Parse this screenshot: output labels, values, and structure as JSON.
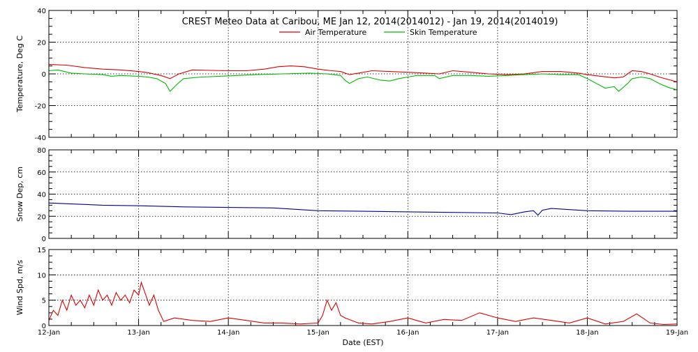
{
  "chart_data": {
    "type": "line",
    "title": "CREST Meteo Data at Caribou, ME   Jan 12, 2014(2014012) - Jan 19, 2014(2014019)",
    "xlabel": "Date (EST)",
    "x_tick_labels": [
      "12-Jan",
      "13-Jan",
      "14-Jan",
      "15-Jan",
      "16-Jan",
      "17-Jan",
      "18-Jan",
      "19-Jan"
    ],
    "xlim_days": [
      0,
      7
    ],
    "panels": [
      {
        "id": "temperature",
        "ylabel": "Temperature, Deg C",
        "ylim": [
          -40,
          40
        ],
        "y_tick_labels": [
          "-40",
          "-20",
          "0",
          "20",
          "40"
        ],
        "y_grid": [
          -20,
          0,
          20
        ],
        "legend_position": "top-center",
        "series": [
          {
            "name": "Air Temperature",
            "color": "#dd0000",
            "points": [
              [
                0,
                6
              ],
              [
                0.2,
                5.5
              ],
              [
                0.4,
                4
              ],
              [
                0.6,
                3
              ],
              [
                0.8,
                2.5
              ],
              [
                1.0,
                1.5
              ],
              [
                1.1,
                0.8
              ],
              [
                1.25,
                -1
              ],
              [
                1.35,
                -3
              ],
              [
                1.45,
                0
              ],
              [
                1.6,
                2.5
              ],
              [
                1.8,
                2.2
              ],
              [
                2.0,
                2
              ],
              [
                2.2,
                2
              ],
              [
                2.4,
                3
              ],
              [
                2.55,
                4.5
              ],
              [
                2.7,
                5
              ],
              [
                2.85,
                4.5
              ],
              [
                3.0,
                3
              ],
              [
                3.15,
                2
              ],
              [
                3.25,
                1.5
              ],
              [
                3.35,
                -0.5
              ],
              [
                3.45,
                0.5
              ],
              [
                3.6,
                2
              ],
              [
                3.8,
                1.5
              ],
              [
                4.0,
                1
              ],
              [
                4.2,
                0.5
              ],
              [
                4.35,
                0
              ],
              [
                4.5,
                2
              ],
              [
                4.7,
                1
              ],
              [
                4.9,
                0
              ],
              [
                5.1,
                -0.5
              ],
              [
                5.3,
                0
              ],
              [
                5.5,
                1.5
              ],
              [
                5.7,
                1.5
              ],
              [
                5.9,
                0.5
              ],
              [
                6.0,
                -0.5
              ],
              [
                6.15,
                -1.5
              ],
              [
                6.3,
                -2.5
              ],
              [
                6.4,
                -2
              ],
              [
                6.5,
                2
              ],
              [
                6.6,
                1.5
              ],
              [
                6.7,
                0
              ],
              [
                6.8,
                -2
              ],
              [
                6.9,
                -3.5
              ],
              [
                7.0,
                -5
              ]
            ]
          },
          {
            "name": "Skin Temperature",
            "color": "#00bb00",
            "points": [
              [
                0,
                2
              ],
              [
                0.1,
                2.5
              ],
              [
                0.25,
                0.5
              ],
              [
                0.4,
                0
              ],
              [
                0.6,
                -0.5
              ],
              [
                0.7,
                -1.5
              ],
              [
                0.8,
                -1
              ],
              [
                1.0,
                -1.5
              ],
              [
                1.1,
                -2
              ],
              [
                1.2,
                -3
              ],
              [
                1.3,
                -6
              ],
              [
                1.35,
                -11
              ],
              [
                1.42,
                -7
              ],
              [
                1.5,
                -3
              ],
              [
                1.7,
                -2
              ],
              [
                1.9,
                -1.5
              ],
              [
                2.1,
                -1
              ],
              [
                2.3,
                -0.5
              ],
              [
                2.6,
                0
              ],
              [
                2.9,
                0.5
              ],
              [
                3.1,
                0
              ],
              [
                3.25,
                -1
              ],
              [
                3.3,
                -4
              ],
              [
                3.35,
                -6
              ],
              [
                3.45,
                -3
              ],
              [
                3.55,
                -2
              ],
              [
                3.7,
                -4
              ],
              [
                3.8,
                -4.5
              ],
              [
                3.9,
                -3
              ],
              [
                4.0,
                -2
              ],
              [
                4.1,
                -1
              ],
              [
                4.3,
                -1
              ],
              [
                4.35,
                -3
              ],
              [
                4.5,
                -1
              ],
              [
                4.7,
                -1
              ],
              [
                4.9,
                -1.5
              ],
              [
                5.1,
                -1
              ],
              [
                5.3,
                -0.5
              ],
              [
                5.5,
                0
              ],
              [
                5.7,
                -0.5
              ],
              [
                5.9,
                -0.5
              ],
              [
                6.0,
                -3
              ],
              [
                6.1,
                -6
              ],
              [
                6.2,
                -9
              ],
              [
                6.3,
                -8
              ],
              [
                6.35,
                -11
              ],
              [
                6.45,
                -6
              ],
              [
                6.5,
                -3
              ],
              [
                6.6,
                -2
              ],
              [
                6.7,
                -3
              ],
              [
                6.8,
                -6
              ],
              [
                6.9,
                -8.5
              ],
              [
                7.0,
                -10
              ]
            ]
          }
        ]
      },
      {
        "id": "snow",
        "ylabel": "Snow Dep, cm",
        "ylim": [
          0,
          80
        ],
        "y_tick_labels": [
          "0",
          "20",
          "40",
          "60",
          "80"
        ],
        "y_grid": [
          20,
          40,
          60
        ],
        "series": [
          {
            "name": "",
            "color": "#000099",
            "points": [
              [
                0,
                32
              ],
              [
                0.3,
                31
              ],
              [
                0.6,
                30
              ],
              [
                1.0,
                29.5
              ],
              [
                1.5,
                28.5
              ],
              [
                2.0,
                28
              ],
              [
                2.5,
                27.5
              ],
              [
                3.0,
                25
              ],
              [
                3.5,
                24.5
              ],
              [
                4.0,
                24
              ],
              [
                4.5,
                23.5
              ],
              [
                5.0,
                23
              ],
              [
                5.15,
                21.5
              ],
              [
                5.3,
                24
              ],
              [
                5.4,
                25
              ],
              [
                5.45,
                21
              ],
              [
                5.5,
                25.5
              ],
              [
                5.6,
                27
              ],
              [
                6.0,
                25
              ],
              [
                6.5,
                24.5
              ],
              [
                7.0,
                24.5
              ]
            ]
          }
        ]
      },
      {
        "id": "wind",
        "ylabel": "Wind Spd, m/s",
        "ylim": [
          0,
          15
        ],
        "y_tick_labels": [
          "0",
          "5",
          "10",
          "15"
        ],
        "y_grid": [
          5,
          10
        ],
        "series": [
          {
            "name": "",
            "color": "#dd0000",
            "points": [
              [
                0,
                1
              ],
              [
                0.05,
                3
              ],
              [
                0.1,
                2
              ],
              [
                0.15,
                5
              ],
              [
                0.2,
                3
              ],
              [
                0.25,
                6
              ],
              [
                0.3,
                4
              ],
              [
                0.35,
                5
              ],
              [
                0.4,
                3.5
              ],
              [
                0.45,
                6
              ],
              [
                0.5,
                4
              ],
              [
                0.55,
                7
              ],
              [
                0.6,
                5
              ],
              [
                0.65,
                6
              ],
              [
                0.7,
                4
              ],
              [
                0.75,
                6.5
              ],
              [
                0.8,
                5
              ],
              [
                0.85,
                6
              ],
              [
                0.9,
                4.5
              ],
              [
                0.95,
                7
              ],
              [
                1.0,
                6
              ],
              [
                1.03,
                8.5
              ],
              [
                1.08,
                6
              ],
              [
                1.12,
                4
              ],
              [
                1.17,
                6
              ],
              [
                1.22,
                3
              ],
              [
                1.28,
                0.8
              ],
              [
                1.4,
                1.5
              ],
              [
                1.6,
                1
              ],
              [
                1.8,
                0.8
              ],
              [
                2.0,
                1.5
              ],
              [
                2.2,
                1
              ],
              [
                2.4,
                0.5
              ],
              [
                2.6,
                0.5
              ],
              [
                2.8,
                0.3
              ],
              [
                3.0,
                0.5
              ],
              [
                3.05,
                2
              ],
              [
                3.1,
                5
              ],
              [
                3.15,
                3
              ],
              [
                3.2,
                4.5
              ],
              [
                3.25,
                2
              ],
              [
                3.3,
                1.5
              ],
              [
                3.45,
                0.5
              ],
              [
                3.6,
                0.3
              ],
              [
                3.8,
                0.8
              ],
              [
                4.0,
                1.5
              ],
              [
                4.2,
                0.5
              ],
              [
                4.4,
                1.2
              ],
              [
                4.6,
                1
              ],
              [
                4.8,
                2.5
              ],
              [
                5.0,
                1.5
              ],
              [
                5.2,
                0.8
              ],
              [
                5.4,
                1.5
              ],
              [
                5.6,
                1
              ],
              [
                5.8,
                0.5
              ],
              [
                6.0,
                1.5
              ],
              [
                6.2,
                0.3
              ],
              [
                6.4,
                0.8
              ],
              [
                6.55,
                2.3
              ],
              [
                6.7,
                0.5
              ],
              [
                6.85,
                0.2
              ],
              [
                7.0,
                0.3
              ]
            ]
          }
        ]
      }
    ]
  }
}
